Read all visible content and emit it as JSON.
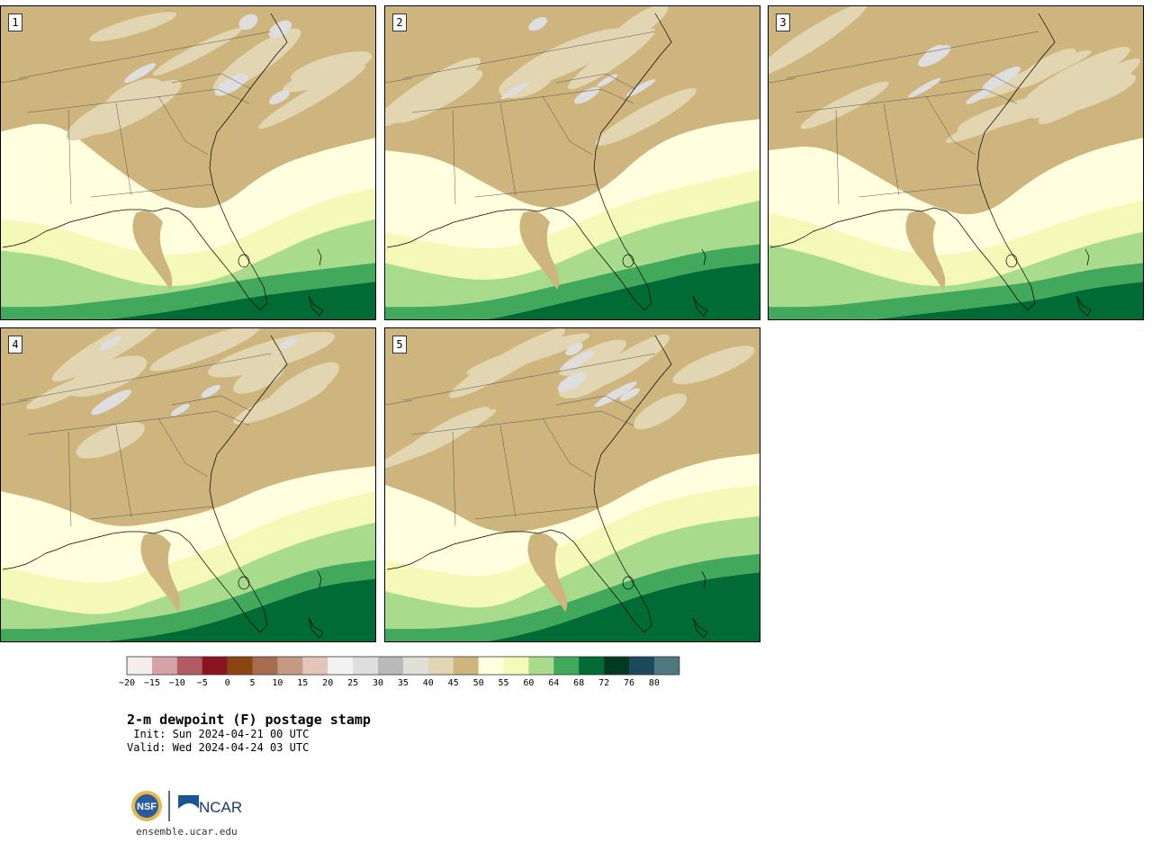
{
  "title": "2-m dewpoint (F) postage stamp",
  "init_text": " Init: Sun 2024-04-21 00 UTC",
  "valid_text": "Valid: Wed 2024-04-24 03 UTC",
  "site_text": "ensemble.ucar.edu",
  "logos": {
    "nsf": "NSF",
    "ncar": "NCAR"
  },
  "panels": [
    {
      "id": "1"
    },
    {
      "id": "2"
    },
    {
      "id": "3"
    },
    {
      "id": "4"
    },
    {
      "id": "5"
    }
  ],
  "colorbar": {
    "ticks": [
      "−20",
      "−15",
      "−10",
      "−5",
      "0",
      "5",
      "10",
      "15",
      "20",
      "25",
      "30",
      "35",
      "40",
      "45",
      "50",
      "55",
      "60",
      "64",
      "68",
      "72",
      "76",
      "80"
    ],
    "colors": [
      "#f5ecec",
      "#d4a3a7",
      "#b05c62",
      "#8a1521",
      "#8b4513",
      "#a86d4f",
      "#c49a82",
      "#e3c6b8",
      "#f2f2f2",
      "#dedede",
      "#b9b9b9",
      "#e0e0d6",
      "#e2d5b1",
      "#cdb57d",
      "#ffffe0",
      "#f4f9b8",
      "#a8dc8c",
      "#41a85c",
      "#006b35",
      "#023a20",
      "#1b4b5a",
      "#4f7880"
    ]
  },
  "map_colors": {
    "dry": "#cdb57d",
    "drier": "#e2d5b1",
    "driest": "#dedede",
    "moist": "#ffffe0",
    "moister": "#f4f9b8",
    "humid": "#a8dc8c",
    "very_humid": "#41a85c",
    "tropical": "#006b35"
  }
}
